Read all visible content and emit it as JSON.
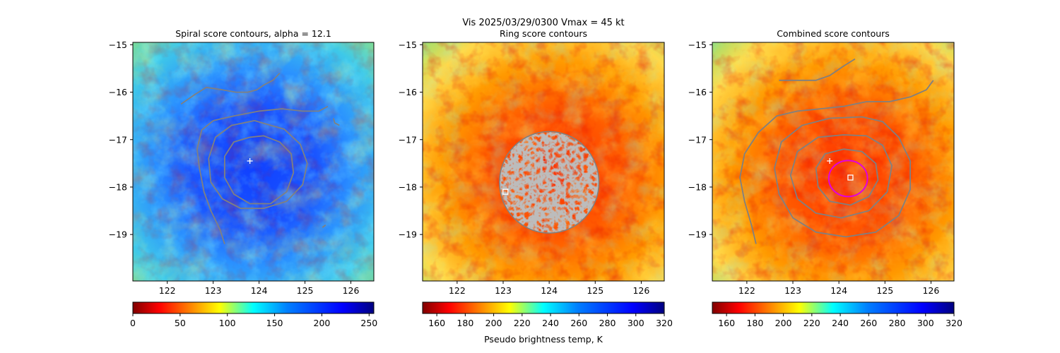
{
  "figure": {
    "suptitle": "Vis  2025/03/29/0300    Vmax = 45 kt",
    "colorbar_label": "Pseudo brightness temp, K"
  },
  "chart_data": [
    {
      "type": "heatmap",
      "title": "Spiral score contours, alpha = 12.1",
      "colormap": "jet",
      "xlim": [
        121.25,
        126.5
      ],
      "ylim": [
        -19.98,
        -14.95
      ],
      "xticks": [
        "122",
        "123",
        "124",
        "125",
        "126"
      ],
      "yticks": [
        "−15",
        "−16",
        "−17",
        "−18",
        "−19"
      ],
      "colorbar": {
        "ticks": [
          "0",
          "50",
          "100",
          "150",
          "200",
          "250"
        ],
        "range": [
          0,
          255
        ]
      },
      "center_marker": {
        "symbol": "+",
        "lon": 123.8,
        "lat": -17.45
      },
      "contour_color": "#808080",
      "contours": [
        {
          "name": "outer-arc",
          "points": [
            [
              122.3,
              -16.25
            ],
            [
              122.6,
              -16.05
            ],
            [
              122.85,
              -15.9
            ],
            [
              123.2,
              -15.95
            ],
            [
              123.5,
              -16.0
            ],
            [
              123.75,
              -16.0
            ],
            [
              123.95,
              -15.95
            ],
            [
              124.1,
              -15.85
            ],
            [
              124.3,
              -15.75
            ],
            [
              124.45,
              -15.6
            ]
          ]
        },
        {
          "name": "middle-spiral",
          "points": [
            [
              125.5,
              -16.3
            ],
            [
              125.3,
              -16.4
            ],
            [
              124.95,
              -16.4
            ],
            [
              124.5,
              -16.35
            ],
            [
              124.0,
              -16.4
            ],
            [
              123.45,
              -16.5
            ],
            [
              123.0,
              -16.6
            ],
            [
              122.75,
              -16.8
            ],
            [
              122.65,
              -17.2
            ],
            [
              122.7,
              -17.6
            ],
            [
              122.8,
              -18.1
            ],
            [
              122.95,
              -18.5
            ],
            [
              123.15,
              -18.9
            ],
            [
              123.25,
              -19.2
            ]
          ]
        },
        {
          "name": "inner-ring",
          "points": [
            [
              123.9,
              -16.6
            ],
            [
              123.4,
              -16.7
            ],
            [
              123.05,
              -16.95
            ],
            [
              122.9,
              -17.4
            ],
            [
              122.95,
              -17.9
            ],
            [
              123.2,
              -18.25
            ],
            [
              123.6,
              -18.45
            ],
            [
              124.1,
              -18.45
            ],
            [
              124.6,
              -18.3
            ],
            [
              124.95,
              -17.95
            ],
            [
              125.05,
              -17.5
            ],
            [
              124.9,
              -17.1
            ],
            [
              124.55,
              -16.78
            ],
            [
              123.9,
              -16.6
            ]
          ]
        },
        {
          "name": "core-ring",
          "points": [
            [
              123.8,
              -16.95
            ],
            [
              123.45,
              -17.05
            ],
            [
              123.25,
              -17.35
            ],
            [
              123.25,
              -17.8
            ],
            [
              123.45,
              -18.15
            ],
            [
              123.8,
              -18.35
            ],
            [
              124.25,
              -18.35
            ],
            [
              124.6,
              -18.1
            ],
            [
              124.75,
              -17.7
            ],
            [
              124.7,
              -17.3
            ],
            [
              124.45,
              -17.05
            ],
            [
              124.1,
              -16.92
            ],
            [
              123.8,
              -16.95
            ]
          ]
        },
        {
          "name": "east-arc",
          "points": [
            [
              125.62,
              -16.55
            ],
            [
              125.65,
              -16.65
            ],
            [
              125.75,
              -16.7
            ]
          ]
        },
        {
          "name": "se-tick",
          "points": [
            [
              125.45,
              -18.8
            ],
            [
              125.38,
              -18.85
            ]
          ]
        }
      ]
    },
    {
      "type": "heatmap",
      "title": "Ring score contours",
      "colormap": "jet_r",
      "xlim": [
        121.25,
        126.5
      ],
      "ylim": [
        -19.98,
        -14.95
      ],
      "xticks": [
        "122",
        "123",
        "124",
        "125",
        "126"
      ],
      "yticks": [
        "−15",
        "−16",
        "−17",
        "−18",
        "−19"
      ],
      "colorbar": {
        "ticks": [
          "160",
          "180",
          "200",
          "220",
          "240",
          "260",
          "280",
          "300",
          "320"
        ],
        "range": [
          150,
          320
        ]
      },
      "center_marker": {
        "symbol": "square",
        "lon": 123.05,
        "lat": -18.1
      },
      "contour_color": "#808080",
      "noisy_disc": {
        "lon": 124.0,
        "lat": -17.9,
        "r_lon": 1.08,
        "r_lat": 1.07
      }
    },
    {
      "type": "heatmap",
      "title": "Combined score contours",
      "colormap": "jet_r",
      "xlim": [
        121.25,
        126.5
      ],
      "ylim": [
        -19.98,
        -14.95
      ],
      "xticks": [
        "122",
        "123",
        "124",
        "125",
        "126"
      ],
      "yticks": [
        "−15",
        "−16",
        "−17",
        "−18",
        "−19"
      ],
      "colorbar": {
        "ticks": [
          "160",
          "180",
          "200",
          "220",
          "240",
          "260",
          "280",
          "300",
          "320"
        ],
        "range": [
          150,
          320
        ]
      },
      "center_marker": {
        "symbol": "+",
        "lon": 123.8,
        "lat": -17.45
      },
      "square_marker": {
        "symbol": "square",
        "lon": 124.25,
        "lat": -17.8
      },
      "magenta_circle": {
        "lon": 124.2,
        "lat": -17.82,
        "r_lon": 0.42,
        "r_lat": 0.38,
        "color": "#e000e0"
      },
      "contour_color": "#808080",
      "contours": [
        {
          "name": "top-arc",
          "points": [
            [
              122.7,
              -15.75
            ],
            [
              123.1,
              -15.75
            ],
            [
              123.5,
              -15.75
            ],
            [
              123.8,
              -15.65
            ],
            [
              124.1,
              -15.45
            ],
            [
              124.35,
              -15.3
            ]
          ]
        },
        {
          "name": "upper-spiral",
          "points": [
            [
              126.05,
              -15.75
            ],
            [
              125.9,
              -15.95
            ],
            [
              125.55,
              -16.1
            ],
            [
              125.1,
              -16.2
            ],
            [
              124.6,
              -16.2
            ],
            [
              124.1,
              -16.3
            ],
            [
              123.6,
              -16.35
            ],
            [
              123.1,
              -16.4
            ],
            [
              122.65,
              -16.5
            ],
            [
              122.25,
              -16.85
            ],
            [
              121.95,
              -17.3
            ],
            [
              121.85,
              -17.8
            ],
            [
              121.95,
              -18.3
            ],
            [
              122.1,
              -18.8
            ],
            [
              122.2,
              -19.2
            ]
          ]
        },
        {
          "name": "outer-ring",
          "points": [
            [
              124.5,
              -16.52
            ],
            [
              123.8,
              -16.55
            ],
            [
              123.2,
              -16.7
            ],
            [
              122.75,
              -17.05
            ],
            [
              122.6,
              -17.6
            ],
            [
              122.7,
              -18.15
            ],
            [
              123.0,
              -18.65
            ],
            [
              123.5,
              -18.95
            ],
            [
              124.15,
              -19.05
            ],
            [
              124.8,
              -18.95
            ],
            [
              125.3,
              -18.6
            ],
            [
              125.55,
              -18.05
            ],
            [
              125.55,
              -17.45
            ],
            [
              125.3,
              -16.95
            ],
            [
              124.95,
              -16.62
            ],
            [
              124.5,
              -16.52
            ]
          ]
        },
        {
          "name": "second-ring",
          "points": [
            [
              124.1,
              -16.9
            ],
            [
              123.55,
              -16.95
            ],
            [
              123.1,
              -17.25
            ],
            [
              122.95,
              -17.75
            ],
            [
              123.1,
              -18.25
            ],
            [
              123.5,
              -18.55
            ],
            [
              124.05,
              -18.65
            ],
            [
              124.65,
              -18.5
            ],
            [
              125.05,
              -18.1
            ],
            [
              125.15,
              -17.55
            ],
            [
              124.95,
              -17.12
            ],
            [
              124.6,
              -16.92
            ],
            [
              124.1,
              -16.9
            ]
          ]
        },
        {
          "name": "third-ring",
          "points": [
            [
              124.1,
              -17.2
            ],
            [
              123.7,
              -17.3
            ],
            [
              123.5,
              -17.6
            ],
            [
              123.55,
              -18.0
            ],
            [
              123.8,
              -18.3
            ],
            [
              124.25,
              -18.38
            ],
            [
              124.65,
              -18.2
            ],
            [
              124.85,
              -17.85
            ],
            [
              124.8,
              -17.5
            ],
            [
              124.5,
              -17.25
            ],
            [
              124.1,
              -17.2
            ]
          ]
        }
      ]
    }
  ]
}
